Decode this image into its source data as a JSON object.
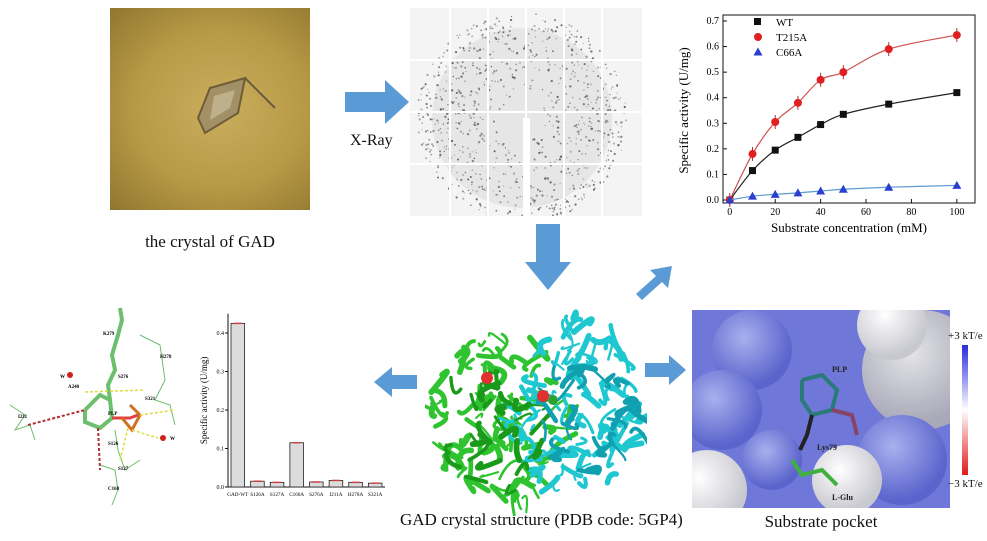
{
  "panels": {
    "crystal_caption": "the crystal of GAD",
    "xray_label": "X-Ray",
    "structure_caption": "GAD crystal structure (PDB code: 5GP4)",
    "pocket_caption": "Substrate pocket",
    "pocket_labels": {
      "plp": "PLP",
      "lys": "Lys79",
      "glu": "L-Glu"
    },
    "colorbar": {
      "top": "+3 kT/e",
      "bottom": "−3 kT/e"
    },
    "interaction_labels": [
      "K279",
      "H278",
      "S276",
      "A240",
      "W",
      "PLP",
      "S321",
      "I211",
      "S126",
      "W",
      "S127",
      "C168"
    ]
  },
  "colors": {
    "arrow": "#5b9bd5",
    "wt": "#111111",
    "t215a": "#e02020",
    "c66a": "#2a3fd0",
    "bar_fill": "#dcdcdc",
    "err": "#d04040"
  },
  "chart_data": [
    {
      "type": "line",
      "xlabel": "Substrate concentration (mM)",
      "ylabel": "Specific activity (U/mg)",
      "xlim": [
        -3,
        108
      ],
      "ylim": [
        0,
        0.7
      ],
      "xticks": [
        0,
        20,
        40,
        60,
        80,
        100
      ],
      "yticks": [
        "0.0",
        "0.1",
        "0.2",
        "0.3",
        "0.4",
        "0.5",
        "0.6",
        "0.7"
      ],
      "legend_position": "top-left",
      "x": [
        0,
        10,
        20,
        30,
        40,
        50,
        70,
        100
      ],
      "series": [
        {
          "name": "WT",
          "marker": "square",
          "values": [
            0,
            0.115,
            0.195,
            0.245,
            0.295,
            0.335,
            0.375,
            0.42
          ]
        },
        {
          "name": "T215A",
          "marker": "circle",
          "values": [
            0,
            0.18,
            0.305,
            0.38,
            0.47,
            0.5,
            0.59,
            0.645
          ]
        },
        {
          "name": "C66A",
          "marker": "triangle",
          "values": [
            0,
            0.015,
            0.022,
            0.028,
            0.035,
            0.042,
            0.05,
            0.057
          ]
        }
      ]
    },
    {
      "type": "bar",
      "ylabel": "Specific activity (U/mg)",
      "ylim": [
        0,
        0.45
      ],
      "yticks": [
        "0.0",
        "0.1",
        "0.2",
        "0.3",
        "0.4"
      ],
      "categories": [
        "GAD-WT",
        "S126A",
        "S127A",
        "C168A",
        "S276A",
        "I211A",
        "H278A",
        "S321A"
      ],
      "values": [
        0.425,
        0.015,
        0.012,
        0.115,
        0.013,
        0.017,
        0.012,
        0.01
      ]
    }
  ]
}
